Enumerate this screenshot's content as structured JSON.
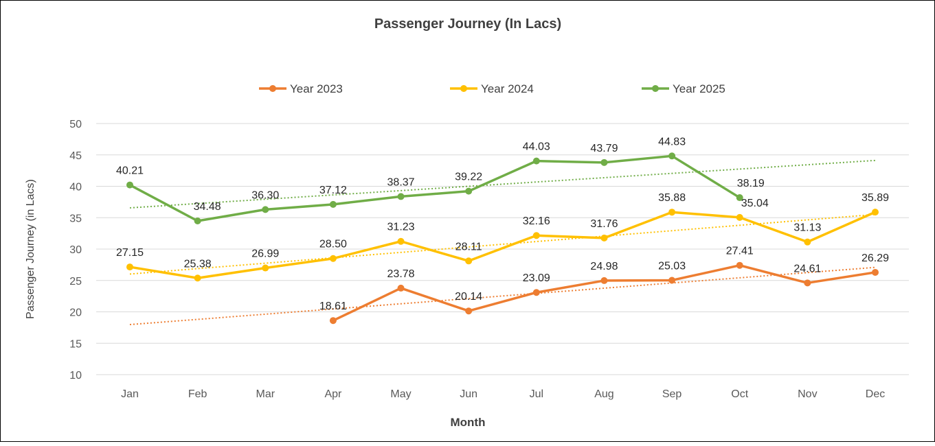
{
  "chart_data": {
    "type": "line",
    "title": "Passenger Journey (In Lacs)",
    "xlabel": "Month",
    "ylabel": "Passenger Journey (in Lacs)",
    "ylim": [
      10,
      50
    ],
    "yticks": [
      10,
      15,
      20,
      25,
      30,
      35,
      40,
      45,
      50
    ],
    "grid": true,
    "legend_position": "top",
    "categories": [
      "Jan",
      "Feb",
      "Mar",
      "Apr",
      "May",
      "Jun",
      "Jul",
      "Aug",
      "Sep",
      "Oct",
      "Nov",
      "Dec"
    ],
    "trendlines": "linear, dotted",
    "series": [
      {
        "name": "Year 2023",
        "color": "#ED7D31",
        "values": [
          null,
          null,
          null,
          18.61,
          23.78,
          20.14,
          23.09,
          24.98,
          25.03,
          27.41,
          24.61,
          26.29
        ],
        "labels": [
          null,
          null,
          null,
          "18.61",
          "23.78",
          "20.14",
          "23.09",
          "24.98",
          "25.03",
          "27.41",
          "24.61",
          "26.29"
        ]
      },
      {
        "name": "Year 2024",
        "color": "#FFC000",
        "values": [
          27.15,
          25.38,
          26.99,
          28.5,
          31.23,
          28.11,
          32.16,
          31.76,
          35.88,
          35.04,
          31.13,
          35.89
        ],
        "labels": [
          "27.15",
          "25.38",
          "26.99",
          "28.50",
          "31.23",
          "28.11",
          "32.16",
          "31.76",
          "35.88",
          "35.04",
          "31.13",
          "35.89"
        ]
      },
      {
        "name": "Year 2025",
        "color": "#70AD47",
        "values": [
          40.21,
          34.48,
          36.3,
          37.12,
          38.37,
          39.22,
          44.03,
          43.79,
          44.83,
          38.19,
          null,
          null
        ],
        "labels": [
          "40.21",
          "34.48",
          "36.30",
          "37.12",
          "38.37",
          "39.22",
          "44.03",
          "43.79",
          "44.83",
          "38.19",
          null,
          null
        ]
      }
    ]
  }
}
